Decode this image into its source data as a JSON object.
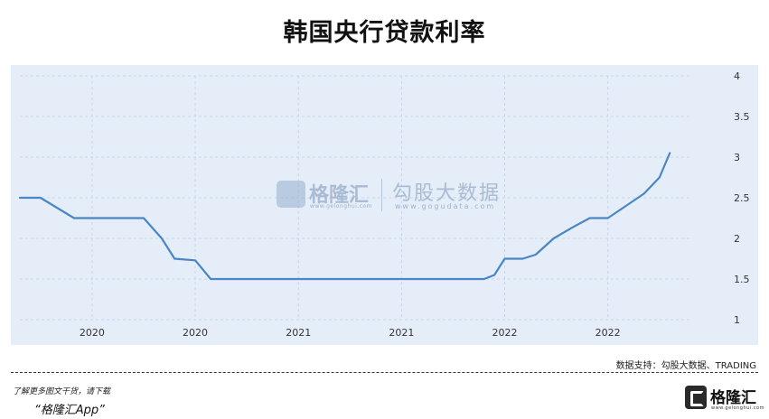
{
  "title": "韩国央行贷款利率",
  "watermark": {
    "brand_name": "格隆汇",
    "brand_url": "www.gelonghui.com",
    "partner_name": "勾股大数据",
    "partner_url": "www.gogudata.com"
  },
  "source": "数据支持：勾股大数据、TRADING",
  "promo": {
    "line1": "了解更多图文干货，请下载",
    "line2": "“格隆汇App”"
  },
  "footer_brand": {
    "name": "格隆汇",
    "url": "www.gelonghui.com"
  },
  "colors": {
    "line": "#4a86c5",
    "panel_bg": "#e5eef8",
    "grid": "#c9d6e6"
  },
  "chart_data": {
    "type": "line",
    "title": "韩国央行贷款利率",
    "xlabel": "",
    "ylabel": "",
    "ylim": [
      1,
      4
    ],
    "yticks": [
      1,
      1.5,
      2,
      2.5,
      3,
      3.5,
      4
    ],
    "ytick_labels": [
      "1",
      "1.5",
      "2",
      "2.5",
      "3",
      "3.5",
      "4"
    ],
    "y_axis_position": "right",
    "grid": "dashed",
    "xticks": [
      0,
      2,
      4,
      6,
      8,
      10
    ],
    "xtick_labels": [
      "2020",
      "2020",
      "2021",
      "2021",
      "2022",
      "2022"
    ],
    "xlim": [
      -1.4,
      11.6
    ],
    "x": [
      -1.4,
      -1.0,
      -0.35,
      0.0,
      0.35,
      0.6,
      1.0,
      1.35,
      1.6,
      2.0,
      2.3,
      2.6,
      3.0,
      3.4,
      3.7,
      4.0,
      4.4,
      4.7,
      5.0,
      5.4,
      5.8,
      6.0,
      6.35,
      6.7,
      7.0,
      7.35,
      7.6,
      7.8,
      8.0,
      8.35,
      8.6,
      8.95,
      9.3,
      9.65,
      10.0,
      10.35,
      10.7,
      11.0,
      11.2
    ],
    "y": [
      2.5,
      2.5,
      2.25,
      2.25,
      2.25,
      2.25,
      2.25,
      2.0,
      1.75,
      1.73,
      1.5,
      1.5,
      1.5,
      1.5,
      1.5,
      1.5,
      1.5,
      1.5,
      1.5,
      1.5,
      1.5,
      1.5,
      1.5,
      1.5,
      1.5,
      1.5,
      1.5,
      1.55,
      1.75,
      1.75,
      1.8,
      2.0,
      2.13,
      2.25,
      2.25,
      2.4,
      2.55,
      2.75,
      3.05
    ]
  }
}
